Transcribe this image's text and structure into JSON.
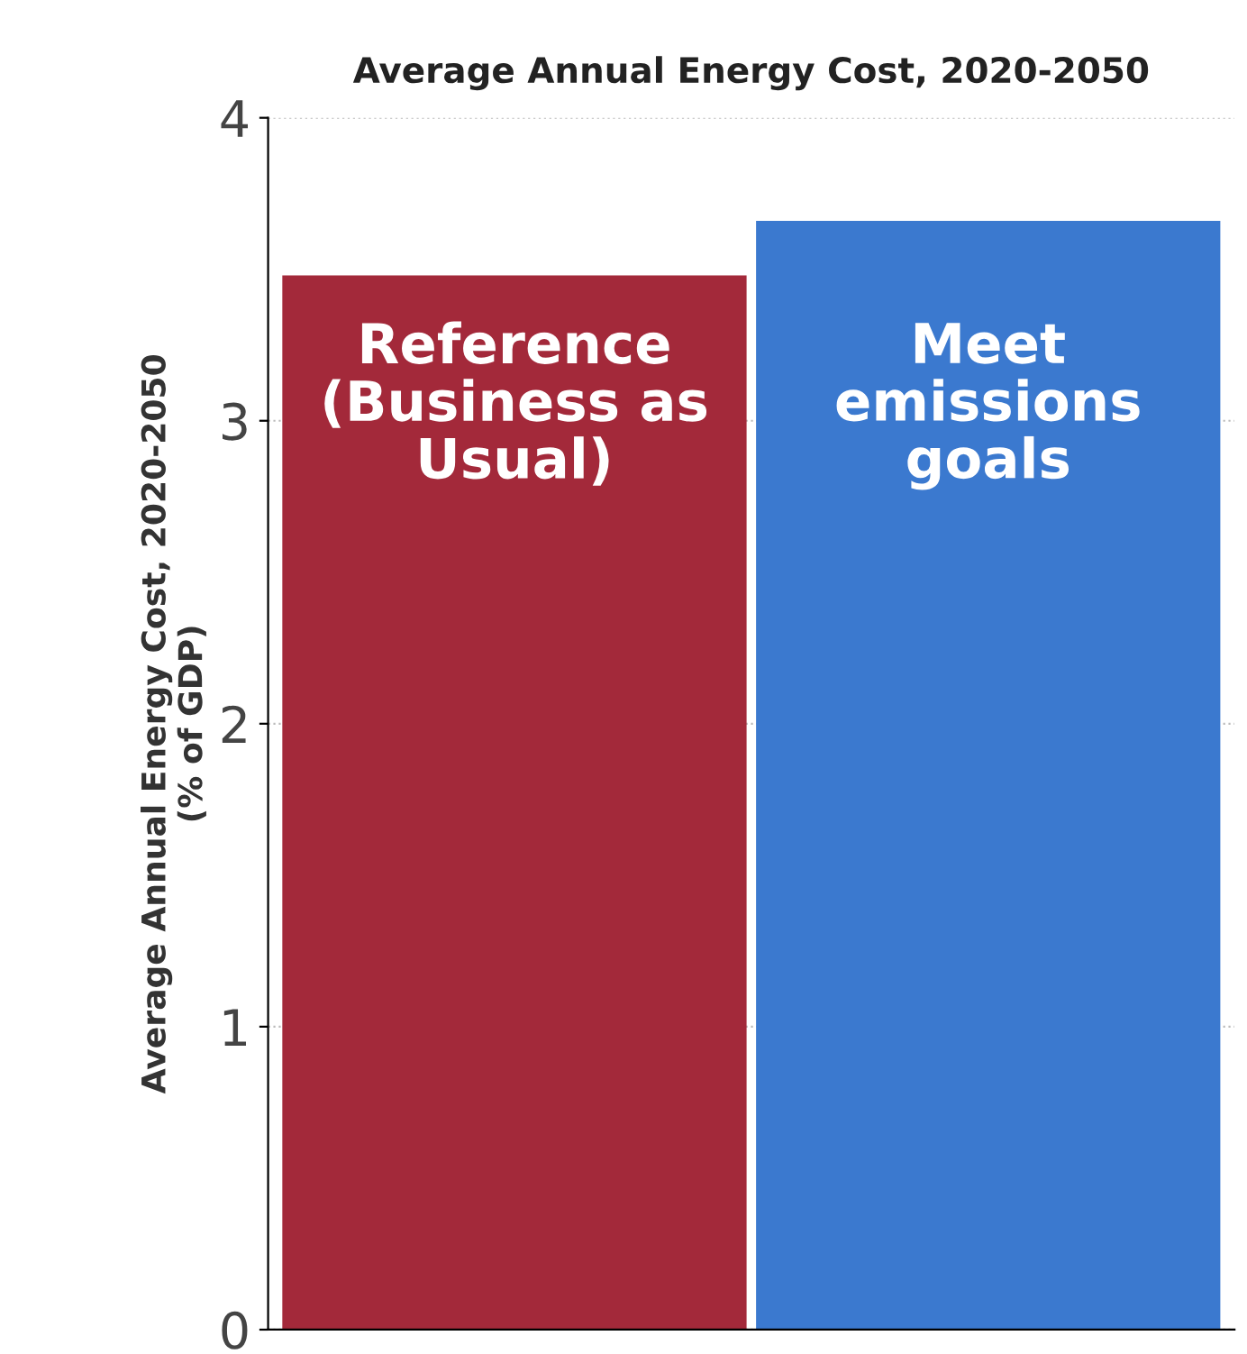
{
  "chart_data": {
    "type": "bar",
    "title": "Average Annual Energy Cost, 2020-2050",
    "ylabel": "Average Annual Energy Cost, 2020-2050\n(% of GDP)",
    "categories": [
      "Reference\n(Business as\nUsual)",
      "Meet\nemissions\ngoals"
    ],
    "values": [
      3.48,
      3.66
    ],
    "colors": [
      "#a3293a",
      "#3b79cf"
    ],
    "ylim": [
      0,
      4
    ],
    "yticks": [
      0,
      1,
      2,
      3,
      4
    ],
    "grid": "y"
  }
}
